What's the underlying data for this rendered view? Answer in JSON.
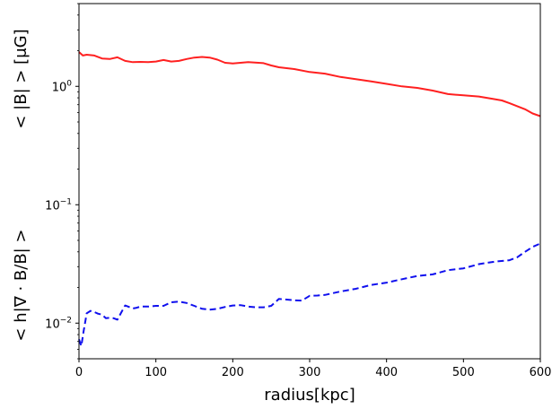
{
  "chart_data": {
    "type": "line",
    "title": "",
    "xlabel": "radius[kpc]",
    "ylabel_top": "< |B| > [μG]",
    "ylabel_bottom": "< h|∇ · B/B| >",
    "xlim": [
      0,
      600
    ],
    "ylim": [
      0.005,
      5
    ],
    "yscale": "log",
    "grid": false,
    "x_ticks": [
      "0",
      "100",
      "200",
      "300",
      "400",
      "500",
      "600"
    ],
    "x_tick_values": [
      0,
      100,
      200,
      300,
      400,
      500,
      600
    ],
    "y_ticks": [
      {
        "value": 1,
        "base": "10",
        "exp": "0"
      },
      {
        "value": 0.1,
        "base": "10",
        "exp": "−1"
      },
      {
        "value": 0.01,
        "base": "10",
        "exp": "−2"
      }
    ],
    "series": [
      {
        "color": "#ff2020",
        "style": "solid",
        "x": [
          0,
          5,
          10,
          20,
          30,
          40,
          50,
          60,
          70,
          80,
          90,
          100,
          110,
          120,
          130,
          140,
          150,
          160,
          170,
          180,
          190,
          200,
          220,
          240,
          250,
          260,
          280,
          300,
          320,
          340,
          360,
          380,
          400,
          420,
          440,
          460,
          480,
          500,
          520,
          540,
          550,
          560,
          570,
          580,
          590,
          600
        ],
        "values": [
          1.95,
          1.82,
          1.85,
          1.82,
          1.72,
          1.7,
          1.76,
          1.64,
          1.6,
          1.61,
          1.6,
          1.62,
          1.67,
          1.62,
          1.64,
          1.7,
          1.75,
          1.77,
          1.75,
          1.68,
          1.58,
          1.56,
          1.6,
          1.57,
          1.5,
          1.45,
          1.4,
          1.32,
          1.28,
          1.2,
          1.15,
          1.1,
          1.05,
          1.0,
          0.97,
          0.92,
          0.86,
          0.84,
          0.82,
          0.78,
          0.76,
          0.72,
          0.68,
          0.64,
          0.59,
          0.56
        ]
      },
      {
        "color": "#1010ee",
        "style": "dashed",
        "x": [
          0,
          3,
          6,
          10,
          15,
          20,
          25,
          30,
          35,
          40,
          45,
          50,
          55,
          60,
          65,
          70,
          75,
          80,
          90,
          100,
          110,
          120,
          130,
          140,
          150,
          160,
          170,
          180,
          190,
          200,
          210,
          220,
          230,
          240,
          250,
          260,
          270,
          280,
          290,
          300,
          310,
          320,
          340,
          360,
          380,
          400,
          420,
          440,
          460,
          480,
          500,
          520,
          540,
          560,
          570,
          580,
          590,
          600
        ],
        "values": [
          0.0073,
          0.0064,
          0.0085,
          0.0121,
          0.0127,
          0.0124,
          0.012,
          0.0118,
          0.011,
          0.0111,
          0.011,
          0.0107,
          0.0123,
          0.0141,
          0.0137,
          0.0133,
          0.0135,
          0.0138,
          0.0138,
          0.014,
          0.014,
          0.015,
          0.0152,
          0.0148,
          0.014,
          0.0132,
          0.013,
          0.0132,
          0.0137,
          0.0141,
          0.0142,
          0.0138,
          0.0136,
          0.0136,
          0.014,
          0.016,
          0.0158,
          0.0156,
          0.0155,
          0.017,
          0.0171,
          0.0173,
          0.0185,
          0.0195,
          0.021,
          0.022,
          0.0235,
          0.025,
          0.0258,
          0.028,
          0.029,
          0.0315,
          0.033,
          0.034,
          0.036,
          0.04,
          0.044,
          0.047
        ]
      }
    ]
  }
}
